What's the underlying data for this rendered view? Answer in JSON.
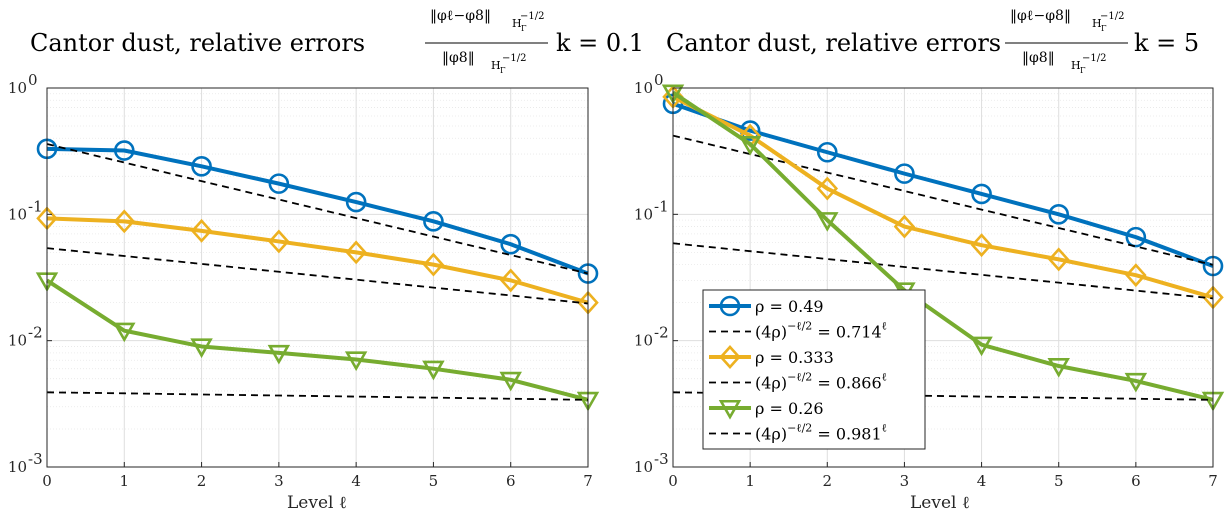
{
  "colors": {
    "series1": "#0072BD",
    "series2": "#EDB120",
    "series3": "#77AC30",
    "reference": "#000000",
    "grid": "#dedede"
  },
  "chart_data": [
    {
      "type": "line",
      "title_main": "Cantor dust, relative errors",
      "title_k": "k = 0.1",
      "xlabel": "Level ℓ",
      "ylabel": "",
      "yscale": "log",
      "xlim": [
        0,
        7
      ],
      "ylim": [
        0.001,
        1
      ],
      "grid": true,
      "x": [
        0,
        1,
        2,
        3,
        4,
        5,
        6,
        7
      ],
      "x_ticks": [
        "0",
        "1",
        "2",
        "3",
        "4",
        "5",
        "6",
        "7"
      ],
      "y_ticks": [
        {
          "value": 1,
          "base": "10",
          "exp": "0"
        },
        {
          "value": 0.1,
          "base": "10",
          "exp": "-1"
        },
        {
          "value": 0.01,
          "base": "10",
          "exp": "-2"
        },
        {
          "value": 0.001,
          "base": "10",
          "exp": "-3"
        }
      ],
      "legend": null,
      "series": [
        {
          "name": "ρ = 0.49",
          "style": "solid",
          "marker": "circle",
          "color_key": "series1",
          "values": [
            0.33,
            0.32,
            0.24,
            0.175,
            0.125,
            0.088,
            0.058,
            0.034
          ]
        },
        {
          "name": "(4ρ)^(-ℓ/2) = 0.714^ℓ",
          "style": "dashed",
          "marker": "none",
          "color_key": "reference",
          "values": [
            0.36,
            0.257,
            0.183,
            0.131,
            0.0934,
            0.0667,
            0.0476,
            0.034
          ]
        },
        {
          "name": "ρ = 0.333",
          "style": "solid",
          "marker": "diamond",
          "color_key": "series2",
          "values": [
            0.093,
            0.088,
            0.074,
            0.061,
            0.05,
            0.04,
            0.03,
            0.02
          ]
        },
        {
          "name": "(4ρ)^(-ℓ/2) = 0.866^ℓ",
          "style": "dashed",
          "marker": "none",
          "color_key": "reference",
          "values": [
            0.054,
            0.0468,
            0.0405,
            0.0351,
            0.0304,
            0.0263,
            0.0228,
            0.0197
          ]
        },
        {
          "name": "ρ = 0.26",
          "style": "solid",
          "marker": "triangle-down",
          "color_key": "series3",
          "values": [
            0.03,
            0.012,
            0.009,
            0.008,
            0.0071,
            0.006,
            0.0049,
            0.0034
          ]
        },
        {
          "name": "(4ρ)^(-ℓ/2) = 0.981^ℓ",
          "style": "dashed",
          "marker": "none",
          "color_key": "reference",
          "values": [
            0.0039,
            0.00383,
            0.00375,
            0.00368,
            0.00361,
            0.00354,
            0.00347,
            0.0034
          ]
        }
      ]
    },
    {
      "type": "line",
      "title_main": "Cantor dust, relative errors",
      "title_k": "k = 5",
      "xlabel": "Level ℓ",
      "ylabel": "",
      "yscale": "log",
      "xlim": [
        0,
        7
      ],
      "ylim": [
        0.001,
        1
      ],
      "grid": true,
      "x": [
        0,
        1,
        2,
        3,
        4,
        5,
        6,
        7
      ],
      "x_ticks": [
        "0",
        "1",
        "2",
        "3",
        "4",
        "5",
        "6",
        "7"
      ],
      "y_ticks": [
        {
          "value": 1,
          "base": "10",
          "exp": "0"
        },
        {
          "value": 0.1,
          "base": "10",
          "exp": "-1"
        },
        {
          "value": 0.01,
          "base": "10",
          "exp": "-2"
        },
        {
          "value": 0.001,
          "base": "10",
          "exp": "-3"
        }
      ],
      "legend": "lower-left",
      "series": [
        {
          "name": "ρ = 0.49",
          "style": "solid",
          "marker": "circle",
          "color_key": "series1",
          "values": [
            0.75,
            0.46,
            0.31,
            0.21,
            0.145,
            0.1,
            0.066,
            0.039
          ]
        },
        {
          "name": "(4ρ)^(-ℓ/2) = 0.714^ℓ",
          "style": "dashed",
          "marker": "none",
          "color_key": "reference",
          "values": [
            0.42,
            0.3,
            0.214,
            0.153,
            0.109,
            0.078,
            0.0557,
            0.0398
          ]
        },
        {
          "name": "ρ = 0.333",
          "style": "solid",
          "marker": "diamond",
          "color_key": "series2",
          "values": [
            0.85,
            0.42,
            0.16,
            0.08,
            0.057,
            0.044,
            0.033,
            0.022
          ]
        },
        {
          "name": "(4ρ)^(-ℓ/2) = 0.866^ℓ",
          "style": "dashed",
          "marker": "none",
          "color_key": "reference",
          "values": [
            0.059,
            0.0511,
            0.0443,
            0.0383,
            0.0332,
            0.0288,
            0.0249,
            0.0216
          ]
        },
        {
          "name": "ρ = 0.26",
          "style": "solid",
          "marker": "triangle-down",
          "color_key": "series3",
          "values": [
            0.92,
            0.36,
            0.09,
            0.025,
            0.0093,
            0.0063,
            0.0048,
            0.0034
          ]
        },
        {
          "name": "(4ρ)^(-ℓ/2) = 0.981^ℓ",
          "style": "dashed",
          "marker": "none",
          "color_key": "reference",
          "values": [
            0.0039,
            0.00383,
            0.00375,
            0.00368,
            0.00361,
            0.00354,
            0.00347,
            0.0034
          ]
        }
      ]
    }
  ],
  "title_fraction": {
    "numerator": "‖φℓ−φ8‖",
    "denominator": "‖φ8‖",
    "norm_sub": "H",
    "norm_sub_index": "Γ",
    "norm_sup": "−1/2"
  },
  "legend_entries": [
    {
      "label": "ρ = 0.49",
      "marker": "circle",
      "color_key": "series1",
      "style": "solid"
    },
    {
      "label": "(4ρ)",
      "sup": "−ℓ/2",
      "eq": " = 0.714",
      "eq_sup": "ℓ",
      "marker": "none",
      "color_key": "reference",
      "style": "dashed"
    },
    {
      "label": "ρ = 0.333",
      "marker": "diamond",
      "color_key": "series2",
      "style": "solid"
    },
    {
      "label": "(4ρ)",
      "sup": "−ℓ/2",
      "eq": " = 0.866",
      "eq_sup": "ℓ",
      "marker": "none",
      "color_key": "reference",
      "style": "dashed"
    },
    {
      "label": "ρ = 0.26",
      "marker": "triangle-down",
      "color_key": "series3",
      "style": "solid"
    },
    {
      "label": "(4ρ)",
      "sup": "−ℓ/2",
      "eq": " = 0.981",
      "eq_sup": "ℓ",
      "marker": "none",
      "color_key": "reference",
      "style": "dashed"
    }
  ]
}
